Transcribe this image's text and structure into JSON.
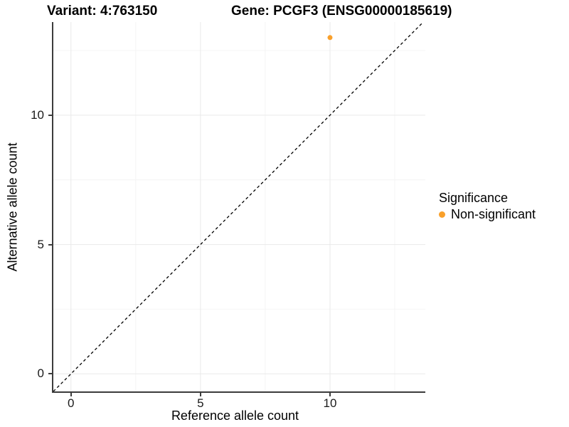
{
  "titles": {
    "variant": "Variant: 4:763150",
    "gene": "Gene: PCGF3 (ENSG00000185619)"
  },
  "axes": {
    "x": {
      "label": "Reference allele count",
      "ticks": [
        "0",
        "5",
        "10"
      ]
    },
    "y": {
      "label": "Alternative allele count",
      "ticks": [
        "0",
        "5",
        "10"
      ]
    }
  },
  "legend": {
    "title": "Significance",
    "entries": [
      {
        "label": "Non-significant",
        "color": "#F9A02B",
        "marker": "circle-icon"
      }
    ]
  },
  "colors": {
    "point": "#F9A02B",
    "axis_line": "#3c3c3c",
    "grid_major": "#e9e9e9",
    "grid_minor": "#f4f4f4",
    "dashed_line": "#000000",
    "background": "#ffffff"
  },
  "chart_data": {
    "type": "scatter",
    "title": "Variant: 4:763150 — Gene: PCGF3 (ENSG00000185619)",
    "xlabel": "Reference allele count",
    "ylabel": "Alternative allele count",
    "xlim": [
      -0.68,
      13.68
    ],
    "ylim": [
      -0.68,
      13.6
    ],
    "x_major_ticks": [
      0,
      5,
      10
    ],
    "y_major_ticks": [
      0,
      5,
      10
    ],
    "x_minor_ticks": [
      2.5,
      7.5,
      12.5
    ],
    "y_minor_ticks": [
      2.5,
      7.5,
      12.5
    ],
    "series": [
      {
        "name": "Non-significant",
        "color": "#F9A02B",
        "points": [
          {
            "x": 10,
            "y": 13
          }
        ]
      }
    ],
    "reference_line": {
      "type": "identity y=x",
      "style": "dashed",
      "color": "#000000"
    },
    "grid": "major+minor",
    "legend_position": "right",
    "point_radius_px": 3.5
  }
}
